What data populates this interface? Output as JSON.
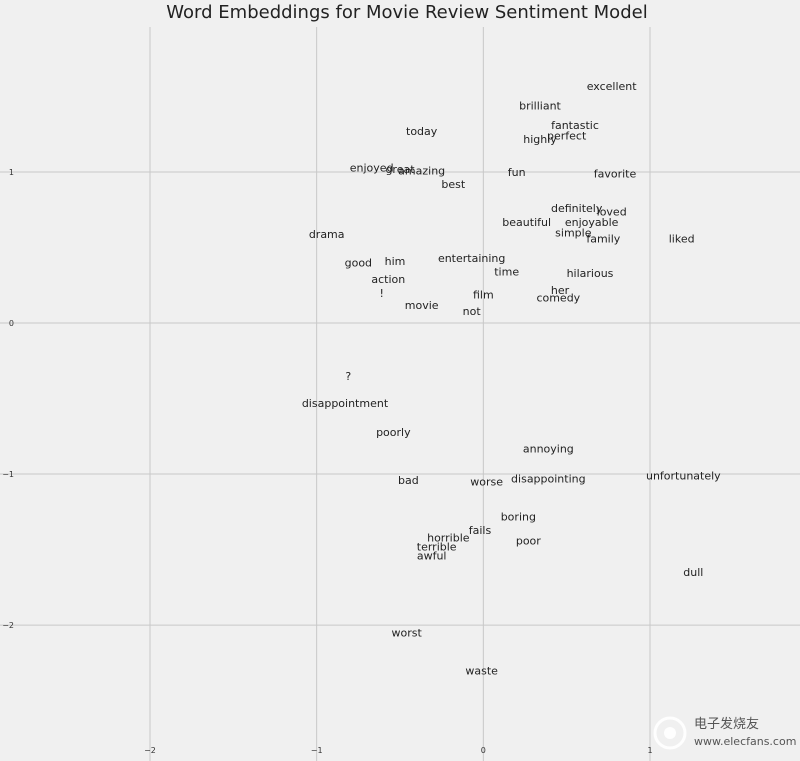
{
  "chart_data": {
    "type": "scatter",
    "title": "Word Embeddings for Movie Review Sentiment Model",
    "xlabel": "",
    "ylabel": "",
    "xlim": [
      -2.9,
      1.9
    ],
    "ylim": [
      -2.9,
      1.96
    ],
    "xticks": [
      -2,
      -1,
      0,
      1
    ],
    "yticks": [
      1,
      0,
      -1,
      -2
    ],
    "grid": true,
    "points": [
      {
        "label": "excellent",
        "x": 0.77,
        "y": 1.57
      },
      {
        "label": "brilliant",
        "x": 0.34,
        "y": 1.44
      },
      {
        "label": "fantastic",
        "x": 0.55,
        "y": 1.31
      },
      {
        "label": "perfect",
        "x": 0.5,
        "y": 1.24
      },
      {
        "label": "highly",
        "x": 0.34,
        "y": 1.22
      },
      {
        "label": "today",
        "x": -0.37,
        "y": 1.27
      },
      {
        "label": "enjoyed",
        "x": -0.67,
        "y": 1.03
      },
      {
        "label": "great",
        "x": -0.5,
        "y": 1.02
      },
      {
        "label": "amazing",
        "x": -0.37,
        "y": 1.01
      },
      {
        "label": "fun",
        "x": 0.2,
        "y": 1.0
      },
      {
        "label": "favorite",
        "x": 0.79,
        "y": 0.99
      },
      {
        "label": "best",
        "x": -0.18,
        "y": 0.92
      },
      {
        "label": "definitely",
        "x": 0.56,
        "y": 0.76
      },
      {
        "label": "loved",
        "x": 0.77,
        "y": 0.74
      },
      {
        "label": "beautiful",
        "x": 0.26,
        "y": 0.67
      },
      {
        "label": "enjoyable",
        "x": 0.65,
        "y": 0.67
      },
      {
        "label": "simple",
        "x": 0.54,
        "y": 0.6
      },
      {
        "label": "family",
        "x": 0.72,
        "y": 0.56
      },
      {
        "label": "liked",
        "x": 1.19,
        "y": 0.56
      },
      {
        "label": "drama",
        "x": -0.94,
        "y": 0.59
      },
      {
        "label": "good",
        "x": -0.75,
        "y": 0.4
      },
      {
        "label": "him",
        "x": -0.53,
        "y": 0.41
      },
      {
        "label": "entertaining",
        "x": -0.07,
        "y": 0.43
      },
      {
        "label": "time",
        "x": 0.14,
        "y": 0.34
      },
      {
        "label": "hilarious",
        "x": 0.64,
        "y": 0.33
      },
      {
        "label": "action",
        "x": -0.57,
        "y": 0.29
      },
      {
        "label": "her",
        "x": 0.46,
        "y": 0.22
      },
      {
        "label": "!",
        "x": -0.61,
        "y": 0.2
      },
      {
        "label": "film",
        "x": 0.0,
        "y": 0.19
      },
      {
        "label": "comedy",
        "x": 0.45,
        "y": 0.17
      },
      {
        "label": "movie",
        "x": -0.37,
        "y": 0.12
      },
      {
        "label": "not",
        "x": -0.07,
        "y": 0.08
      },
      {
        "label": "?",
        "x": -0.81,
        "y": -0.35
      },
      {
        "label": "disappointment",
        "x": -0.83,
        "y": -0.53
      },
      {
        "label": "poorly",
        "x": -0.54,
        "y": -0.72
      },
      {
        "label": "annoying",
        "x": 0.39,
        "y": -0.83
      },
      {
        "label": "bad",
        "x": -0.45,
        "y": -1.04
      },
      {
        "label": "worse",
        "x": 0.02,
        "y": -1.05
      },
      {
        "label": "disappointing",
        "x": 0.39,
        "y": -1.03
      },
      {
        "label": "unfortunately",
        "x": 1.2,
        "y": -1.01
      },
      {
        "label": "boring",
        "x": 0.21,
        "y": -1.28
      },
      {
        "label": "fails",
        "x": -0.02,
        "y": -1.37
      },
      {
        "label": "horrible",
        "x": -0.21,
        "y": -1.42
      },
      {
        "label": "poor",
        "x": 0.27,
        "y": -1.44
      },
      {
        "label": "terrible",
        "x": -0.28,
        "y": -1.48
      },
      {
        "label": "awful",
        "x": -0.31,
        "y": -1.54
      },
      {
        "label": "dull",
        "x": 1.26,
        "y": -1.65
      },
      {
        "label": "worst",
        "x": -0.46,
        "y": -2.05
      },
      {
        "label": "waste",
        "x": -0.01,
        "y": -2.3
      }
    ]
  },
  "watermark": {
    "brand": "电子发烧友",
    "url": "www.elecfans.com"
  }
}
